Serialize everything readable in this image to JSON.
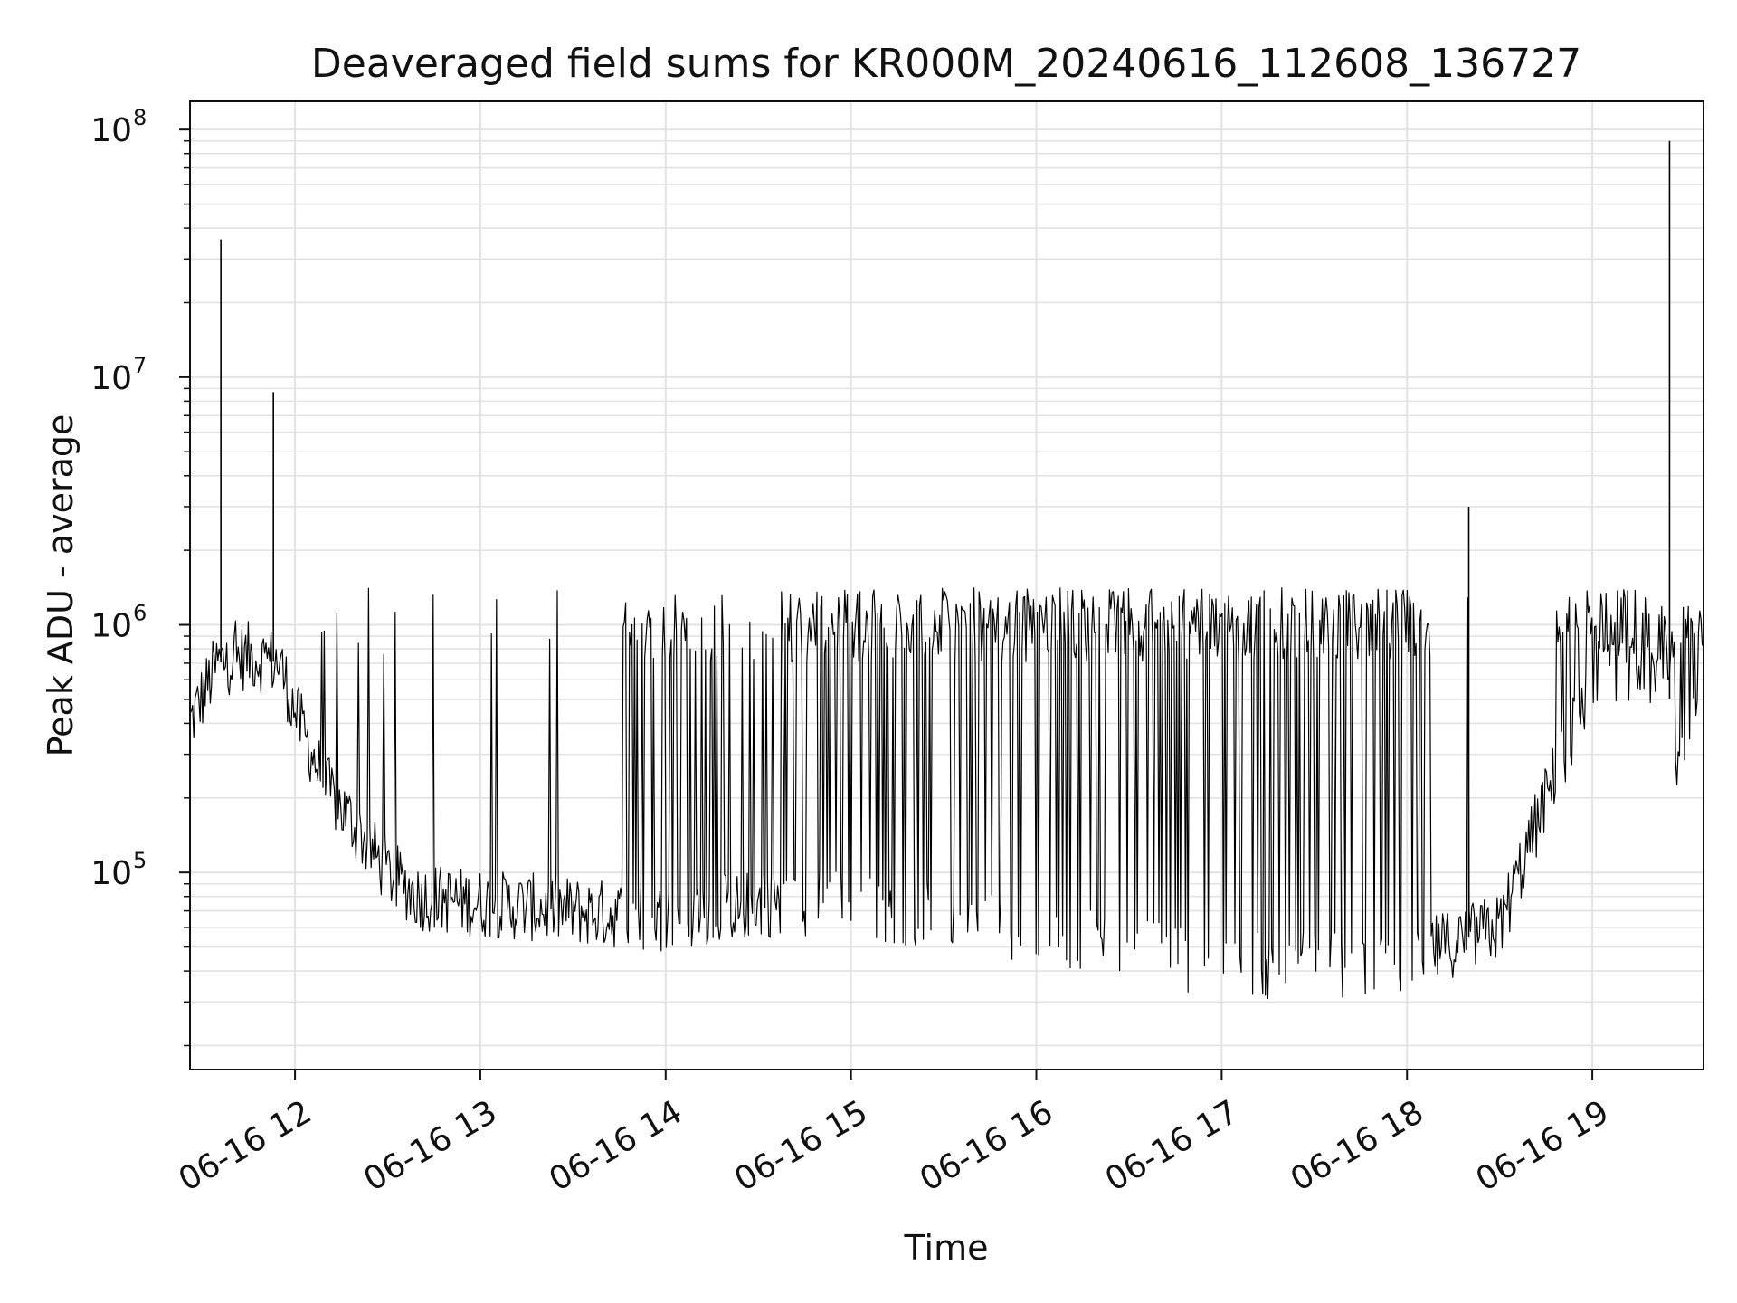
{
  "chart_data": {
    "type": "line",
    "title": "Deaveraged field sums for KR000M_20240616_112608_136727",
    "xlabel": "Time",
    "ylabel": "Peak ADU - average",
    "yscale": "log",
    "ylim": [
      16000,
      130000000
    ],
    "xlim": [
      "2024-06-16T11:26",
      "2024-06-16T19:36"
    ],
    "grid": true,
    "colors": {
      "line": "#000000",
      "grid": "#e3e3e3",
      "axes": "#111111"
    },
    "x_ticks": [
      {
        "t": "2024-06-16T12:00",
        "label": "06-16 12"
      },
      {
        "t": "2024-06-16T13:00",
        "label": "06-16 13"
      },
      {
        "t": "2024-06-16T14:00",
        "label": "06-16 14"
      },
      {
        "t": "2024-06-16T15:00",
        "label": "06-16 15"
      },
      {
        "t": "2024-06-16T16:00",
        "label": "06-16 16"
      },
      {
        "t": "2024-06-16T17:00",
        "label": "06-16 17"
      },
      {
        "t": "2024-06-16T18:00",
        "label": "06-16 18"
      },
      {
        "t": "2024-06-16T19:00",
        "label": "06-16 19"
      }
    ],
    "y_ticks": [
      {
        "value": 100000,
        "base": "10",
        "exp": "5"
      },
      {
        "value": 1000000,
        "base": "10",
        "exp": "6"
      },
      {
        "value": 10000000,
        "base": "10",
        "exp": "7"
      },
      {
        "value": 100000000,
        "base": "10",
        "exp": "8"
      }
    ],
    "series": [
      {
        "points": [
          {
            "t": "2024-06-16T11:26",
            "y": 400000
          },
          {
            "t": "2024-06-16T11:35",
            "y": 700000
          },
          {
            "t": "2024-06-16T11:36",
            "y": 36000000
          },
          {
            "t": "2024-06-16T11:45",
            "y": 750000
          },
          {
            "t": "2024-06-16T11:53",
            "y": 8700000
          },
          {
            "t": "2024-06-16T11:55",
            "y": 700000
          },
          {
            "t": "2024-06-16T12:00",
            "y": 450000
          },
          {
            "t": "2024-06-16T12:10",
            "y": 220000
          },
          {
            "t": "2024-06-16T12:20",
            "y": 150000
          },
          {
            "t": "2024-06-16T12:30",
            "y": 100000
          },
          {
            "t": "2024-06-16T12:40",
            "y": 80000
          },
          {
            "t": "2024-06-16T13:00",
            "y": 75000
          },
          {
            "t": "2024-06-16T13:30",
            "y": 70000
          },
          {
            "t": "2024-06-16T14:00",
            "y": 65000
          },
          {
            "t": "2024-06-16T14:30",
            "y": 75000
          },
          {
            "t": "2024-06-16T15:00",
            "y": 75000
          },
          {
            "t": "2024-06-16T15:30",
            "y": 65000
          },
          {
            "t": "2024-06-16T16:00",
            "y": 60000
          },
          {
            "t": "2024-06-16T16:30",
            "y": 50000
          },
          {
            "t": "2024-06-16T17:00",
            "y": 42000
          },
          {
            "t": "2024-06-16T17:30",
            "y": 42000
          },
          {
            "t": "2024-06-16T18:00",
            "y": 45000
          },
          {
            "t": "2024-06-16T18:20",
            "y": 3000000
          },
          {
            "t": "2024-06-16T18:30",
            "y": 60000
          },
          {
            "t": "2024-06-16T18:45",
            "y": 200000
          },
          {
            "t": "2024-06-16T19:00",
            "y": 600000
          },
          {
            "t": "2024-06-16T19:15",
            "y": 650000
          },
          {
            "t": "2024-06-16T19:24",
            "y": 650000
          },
          {
            "t": "2024-06-16T19:25",
            "y": 90000000
          },
          {
            "t": "2024-06-16T19:27",
            "y": 300000
          },
          {
            "t": "2024-06-16T19:36",
            "y": 700000
          }
        ]
      }
    ]
  }
}
